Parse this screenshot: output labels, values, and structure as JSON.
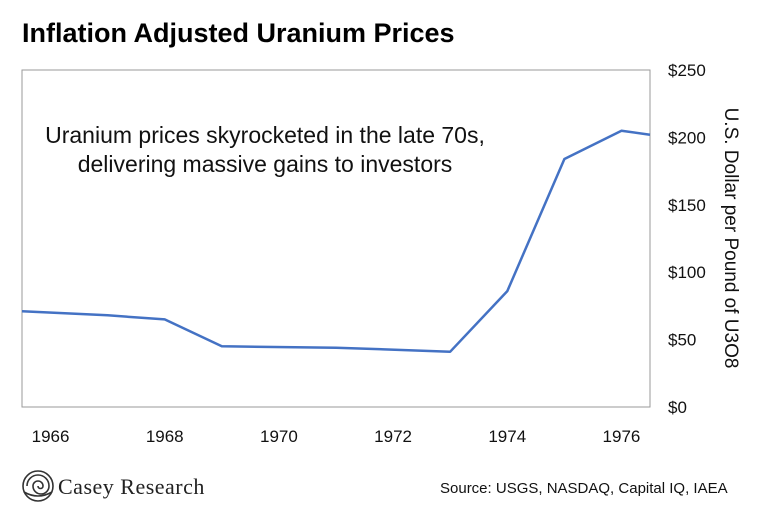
{
  "chart_data": {
    "type": "line",
    "title": "Inflation Adjusted Uranium Prices",
    "ylabel": "U.S. Dollar per Pound of U3O8",
    "annotation": [
      "Uranium prices skyrocketed in the late 70s,",
      "delivering massive gains to investors"
    ],
    "xlim": [
      1965.5,
      1976.5
    ],
    "ylim": [
      0,
      250
    ],
    "x_ticks": [
      1966,
      1968,
      1970,
      1972,
      1974,
      1976
    ],
    "y_ticks": [
      0,
      50,
      100,
      150,
      200,
      250
    ],
    "y_tick_labels": [
      "$0",
      "$50",
      "$100",
      "$150",
      "$200",
      "$250"
    ],
    "series": [
      {
        "color": "#4472C4",
        "x": [
          1965.5,
          1967,
          1968,
          1969,
          1971,
          1973,
          1974,
          1975,
          1976,
          1976.5
        ],
        "values": [
          71,
          68,
          65,
          45,
          44,
          41,
          86,
          184,
          205,
          202
        ]
      }
    ],
    "grid": false
  },
  "footer": {
    "brand": "Casey Research",
    "source": "Source: USGS, NASDAQ, Capital IQ, IAEA"
  }
}
